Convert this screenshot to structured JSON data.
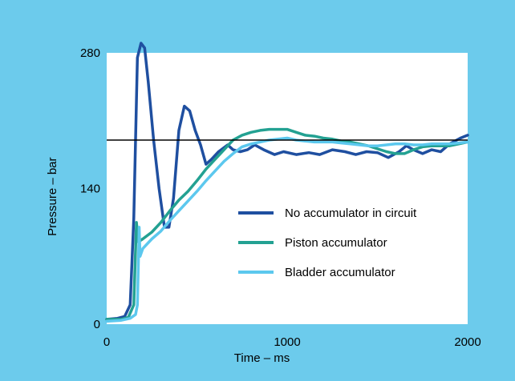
{
  "chart_data": {
    "type": "line",
    "xlabel": "Time – ms",
    "ylabel": "Pressure – bar",
    "xlim": [
      0,
      2000
    ],
    "ylim": [
      0,
      280
    ],
    "x_ticks": [
      "0",
      "1000",
      "2000"
    ],
    "y_ticks": [
      "0",
      "140",
      "280"
    ],
    "reference_line": 190,
    "legend_position": "center-right",
    "colors": {
      "background": "#6ccbec",
      "plot_area": "#ffffff",
      "reference": "#000000"
    },
    "series": [
      {
        "name": "No accumulator in circuit",
        "color": "#1f4fa0",
        "points": [
          [
            0,
            5
          ],
          [
            60,
            6
          ],
          [
            100,
            8
          ],
          [
            130,
            20
          ],
          [
            150,
            110
          ],
          [
            170,
            275
          ],
          [
            190,
            290
          ],
          [
            210,
            285
          ],
          [
            230,
            250
          ],
          [
            260,
            190
          ],
          [
            290,
            140
          ],
          [
            320,
            100
          ],
          [
            345,
            100
          ],
          [
            370,
            130
          ],
          [
            400,
            200
          ],
          [
            430,
            225
          ],
          [
            460,
            220
          ],
          [
            490,
            200
          ],
          [
            520,
            185
          ],
          [
            550,
            165
          ],
          [
            580,
            170
          ],
          [
            620,
            178
          ],
          [
            670,
            185
          ],
          [
            700,
            180
          ],
          [
            740,
            178
          ],
          [
            780,
            180
          ],
          [
            820,
            185
          ],
          [
            870,
            180
          ],
          [
            930,
            175
          ],
          [
            980,
            178
          ],
          [
            1050,
            175
          ],
          [
            1120,
            177
          ],
          [
            1180,
            175
          ],
          [
            1250,
            180
          ],
          [
            1320,
            178
          ],
          [
            1380,
            175
          ],
          [
            1440,
            178
          ],
          [
            1500,
            177
          ],
          [
            1560,
            172
          ],
          [
            1620,
            178
          ],
          [
            1660,
            184
          ],
          [
            1700,
            180
          ],
          [
            1750,
            176
          ],
          [
            1800,
            180
          ],
          [
            1850,
            178
          ],
          [
            1900,
            186
          ],
          [
            1960,
            192
          ],
          [
            2000,
            195
          ]
        ]
      },
      {
        "name": "Piston accumulator",
        "color": "#23a192",
        "points": [
          [
            0,
            5
          ],
          [
            80,
            5
          ],
          [
            120,
            7
          ],
          [
            150,
            20
          ],
          [
            165,
            105
          ],
          [
            175,
            85
          ],
          [
            200,
            88
          ],
          [
            250,
            95
          ],
          [
            300,
            105
          ],
          [
            350,
            117
          ],
          [
            400,
            128
          ],
          [
            450,
            137
          ],
          [
            500,
            148
          ],
          [
            550,
            160
          ],
          [
            600,
            170
          ],
          [
            650,
            180
          ],
          [
            700,
            190
          ],
          [
            750,
            195
          ],
          [
            800,
            198
          ],
          [
            850,
            200
          ],
          [
            900,
            201
          ],
          [
            950,
            201
          ],
          [
            1000,
            201
          ],
          [
            1050,
            198
          ],
          [
            1100,
            195
          ],
          [
            1150,
            194
          ],
          [
            1200,
            192
          ],
          [
            1250,
            191
          ],
          [
            1300,
            189
          ],
          [
            1350,
            188
          ],
          [
            1400,
            186
          ],
          [
            1450,
            184
          ],
          [
            1500,
            181
          ],
          [
            1550,
            178
          ],
          [
            1600,
            176
          ],
          [
            1650,
            176
          ],
          [
            1700,
            180
          ],
          [
            1750,
            183
          ],
          [
            1800,
            184
          ],
          [
            1850,
            184
          ],
          [
            1900,
            184
          ],
          [
            1950,
            186
          ],
          [
            2000,
            188
          ]
        ]
      },
      {
        "name": "Bladder accumulator",
        "color": "#5cc8ee",
        "points": [
          [
            0,
            3
          ],
          [
            80,
            4
          ],
          [
            130,
            6
          ],
          [
            160,
            10
          ],
          [
            170,
            20
          ],
          [
            180,
            100
          ],
          [
            185,
            70
          ],
          [
            200,
            78
          ],
          [
            250,
            88
          ],
          [
            300,
            96
          ],
          [
            350,
            107
          ],
          [
            400,
            117
          ],
          [
            450,
            127
          ],
          [
            500,
            137
          ],
          [
            550,
            148
          ],
          [
            600,
            158
          ],
          [
            650,
            168
          ],
          [
            700,
            176
          ],
          [
            750,
            183
          ],
          [
            800,
            186
          ],
          [
            850,
            188
          ],
          [
            900,
            190
          ],
          [
            950,
            191
          ],
          [
            1000,
            192
          ],
          [
            1050,
            190
          ],
          [
            1100,
            189
          ],
          [
            1150,
            188
          ],
          [
            1200,
            188
          ],
          [
            1250,
            188
          ],
          [
            1300,
            187
          ],
          [
            1350,
            186
          ],
          [
            1400,
            185
          ],
          [
            1450,
            184
          ],
          [
            1500,
            184
          ],
          [
            1550,
            185
          ],
          [
            1600,
            186
          ],
          [
            1650,
            186
          ],
          [
            1700,
            185
          ],
          [
            1750,
            185
          ],
          [
            1800,
            186
          ],
          [
            1850,
            186
          ],
          [
            1900,
            186
          ],
          [
            1950,
            187
          ],
          [
            2000,
            188
          ]
        ]
      }
    ]
  }
}
